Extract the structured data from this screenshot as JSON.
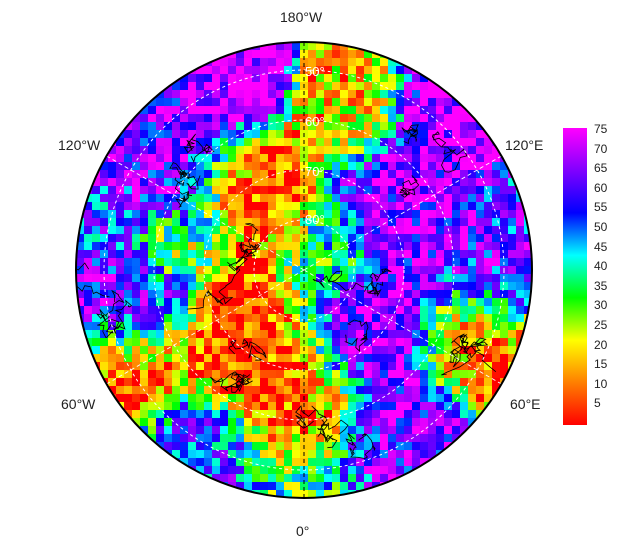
{
  "map": {
    "projection": "north-polar-stereographic",
    "lon_labels": {
      "top": "180°W",
      "upper_left": "120°W",
      "upper_right": "120°E",
      "lower_left": "60°W",
      "lower_right": "60°E",
      "bottom": "0°"
    },
    "lat_labels": [
      "50°",
      "60°",
      "70°",
      "80°"
    ],
    "grid_color": "#ffffff",
    "coast_color": "#000000"
  },
  "colorbar": {
    "min": 0,
    "max": 75,
    "ticks": [
      "75",
      "70",
      "65",
      "60",
      "55",
      "50",
      "45",
      "40",
      "35",
      "30",
      "25",
      "20",
      "15",
      "10",
      "5"
    ],
    "colors": [
      "#ff0000",
      "#ff7f00",
      "#ffff00",
      "#00ff00",
      "#00ffff",
      "#0000ff",
      "#8000ff",
      "#ff00ff"
    ]
  }
}
